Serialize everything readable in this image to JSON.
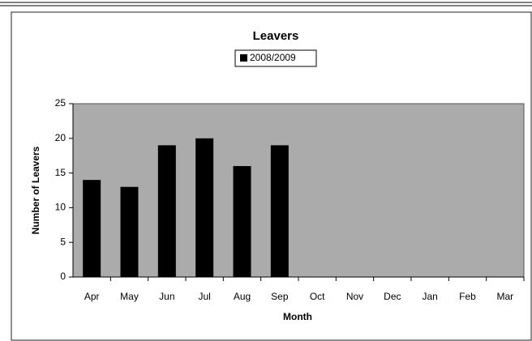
{
  "chart_data": {
    "type": "bar",
    "title": "Leavers",
    "x_label": "Month",
    "y_label": "Number of Leavers",
    "categories": [
      "Apr",
      "May",
      "Jun",
      "Jul",
      "Aug",
      "Sep",
      "Oct",
      "Nov",
      "Dec",
      "Jan",
      "Feb",
      "Mar"
    ],
    "series": [
      {
        "name": "2008/2009",
        "color": "#000000",
        "values": [
          14,
          13,
          19,
          20,
          16,
          19,
          null,
          null,
          null,
          null,
          null,
          null
        ]
      }
    ],
    "ylim": [
      0,
      25
    ],
    "yticks": [
      0,
      5,
      10,
      15,
      20,
      25
    ],
    "legend": "top",
    "plot_background": "#ababab"
  }
}
